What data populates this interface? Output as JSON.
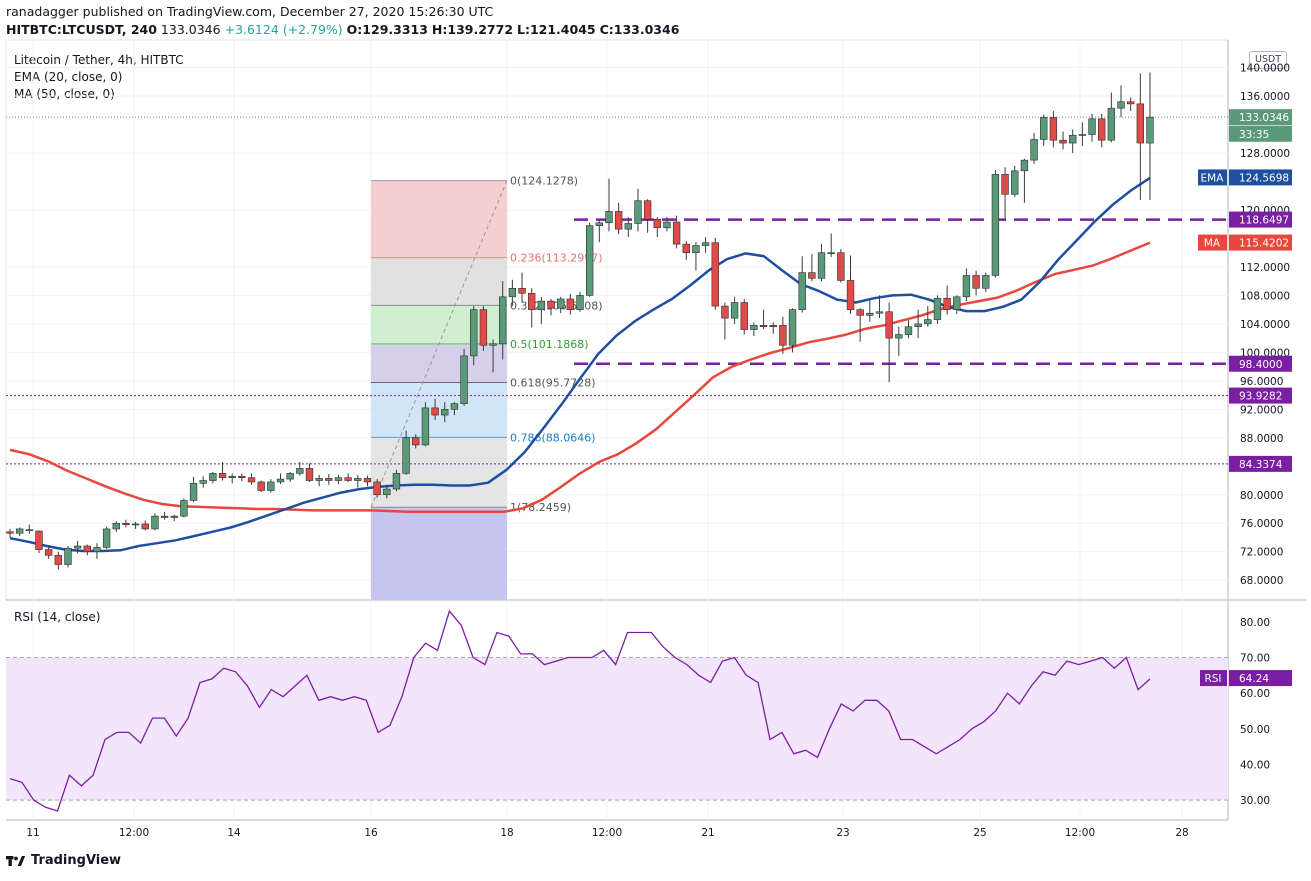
{
  "header": {
    "line1": "ranadagger published on TradingView.com, December 27, 2020 15:26:30 UTC",
    "symbol": "HITBTC:LTCUSDT, 240",
    "price": "133.0346",
    "change": "+3.6124 (+2.79%)",
    "ohlc_o": "O:129.3313",
    "ohlc_h": "H:139.2772",
    "ohlc_l": "L:121.4045",
    "ohlc_c": "C:133.0346"
  },
  "legend": {
    "title": "Litecoin / Tether, 4h, HITBTC",
    "ema": "EMA (20, close, 0)",
    "ma": "MA (50, close, 0)",
    "rsi": "RSI (14, close)"
  },
  "currency_button": "USDT",
  "branding": "TradingView",
  "colors": {
    "up": "#5b9a78",
    "down": "#e04b4a",
    "ema": "#1e4fa0",
    "ma": "#e8473d",
    "fib_line_dashed": "#7b1fa2",
    "rsi": "#7b1fa2"
  },
  "chart_data": {
    "type": "candlestick",
    "price_axis": {
      "ticks": [
        "140.0000",
        "136.0000",
        "128.0000",
        "120.0000",
        "112.0000",
        "108.0000",
        "104.0000",
        "100.0000",
        "96.0000",
        "92.0000",
        "88.0000",
        "80.0000",
        "76.0000",
        "72.0000",
        "68.0000"
      ]
    },
    "time_axis": {
      "ticks": [
        "11",
        "12:00",
        "14",
        "16",
        "18",
        "12:00",
        "21",
        "23",
        "25",
        "12:00",
        "28"
      ]
    },
    "price_labels": [
      {
        "text": "133.0346",
        "kind": "last",
        "color": "#5b9a78"
      },
      {
        "text": "33:35",
        "kind": "countdown",
        "color": "#5b9a78"
      },
      {
        "text": "124.5698",
        "kind": "ema",
        "color": "#1e4fa0"
      },
      {
        "text": "118.6497",
        "kind": "level",
        "color": "#7b1fa2"
      },
      {
        "text": "115.4202",
        "kind": "ma",
        "color": "#e8473d"
      },
      {
        "text": "98.4000",
        "kind": "level",
        "color": "#7b1fa2"
      },
      {
        "text": "93.9282",
        "kind": "level",
        "color": "#7b1fa2"
      },
      {
        "text": "84.3374",
        "kind": "level",
        "color": "#7b1fa2"
      }
    ],
    "tick_labels_on_chart": [
      "EMA",
      "MA"
    ],
    "horizontal_levels": [
      {
        "value": 118.6497,
        "style": "dashed-thick"
      },
      {
        "value": 98.4,
        "style": "dashed-thick"
      },
      {
        "value": 93.9282,
        "style": "dotted"
      },
      {
        "value": 84.3374,
        "style": "dotted"
      }
    ],
    "fibonacci": [
      {
        "label": "0(124.1278)",
        "value": 124.1278
      },
      {
        "label": "0.236(113.2997)",
        "value": 113.2997
      },
      {
        "label": "0.382(106.6008)",
        "value": 106.6008
      },
      {
        "label": "0.5(101.1868)",
        "value": 101.1868
      },
      {
        "label": "0.618(95.7728)",
        "value": 95.7728
      },
      {
        "label": "0.786(88.0646)",
        "value": 88.0646
      },
      {
        "label": "1(78.2459)",
        "value": 78.2459
      }
    ],
    "candles": [
      [
        74.8,
        75.2,
        74.0,
        74.6
      ],
      [
        74.6,
        75.4,
        74.2,
        75.2
      ],
      [
        75.0,
        75.8,
        74.5,
        75.1
      ],
      [
        74.9,
        75.0,
        71.8,
        72.3
      ],
      [
        72.3,
        72.8,
        71.0,
        71.5
      ],
      [
        71.5,
        72.0,
        69.5,
        70.2
      ],
      [
        70.2,
        72.8,
        69.8,
        72.5
      ],
      [
        72.5,
        73.5,
        71.8,
        72.8
      ],
      [
        72.8,
        73.0,
        71.5,
        72.0
      ],
      [
        72.0,
        73.2,
        71.0,
        72.6
      ],
      [
        72.6,
        75.5,
        72.4,
        75.2
      ],
      [
        75.2,
        76.3,
        74.8,
        76.0
      ],
      [
        76.0,
        76.5,
        75.4,
        75.8
      ],
      [
        75.8,
        76.2,
        75.2,
        75.9
      ],
      [
        75.9,
        76.4,
        75.0,
        75.2
      ],
      [
        75.2,
        77.4,
        75.0,
        77.0
      ],
      [
        77.0,
        77.6,
        76.5,
        76.8
      ],
      [
        76.8,
        77.2,
        76.3,
        77.0
      ],
      [
        77.0,
        79.5,
        76.8,
        79.2
      ],
      [
        79.2,
        82.5,
        79.0,
        81.6
      ],
      [
        81.6,
        82.6,
        81.0,
        82.0
      ],
      [
        82.0,
        83.2,
        81.6,
        83.0
      ],
      [
        83.0,
        84.6,
        82.0,
        82.4
      ],
      [
        82.4,
        83.0,
        81.6,
        82.6
      ],
      [
        82.6,
        83.0,
        81.9,
        82.4
      ],
      [
        82.4,
        83.0,
        81.4,
        81.8
      ],
      [
        81.8,
        82.0,
        80.4,
        80.6
      ],
      [
        80.6,
        82.2,
        80.3,
        81.8
      ],
      [
        81.8,
        83.0,
        81.5,
        82.2
      ],
      [
        82.2,
        83.2,
        81.8,
        83.0
      ],
      [
        83.0,
        84.6,
        82.7,
        83.7
      ],
      [
        83.7,
        84.4,
        81.8,
        82.0
      ],
      [
        82.0,
        82.8,
        81.2,
        82.3
      ],
      [
        82.3,
        82.9,
        81.4,
        82.0
      ],
      [
        82.0,
        82.8,
        81.5,
        82.4
      ],
      [
        82.4,
        83.0,
        81.8,
        82.0
      ],
      [
        82.0,
        82.8,
        81.0,
        82.3
      ],
      [
        82.3,
        82.7,
        81.2,
        81.8
      ],
      [
        81.8,
        82.2,
        79.6,
        80.0
      ],
      [
        80.0,
        81.4,
        79.5,
        80.8
      ],
      [
        80.8,
        83.5,
        80.5,
        83.0
      ],
      [
        83.0,
        89.0,
        82.8,
        88.0
      ],
      [
        88.0,
        88.5,
        86.5,
        87.0
      ],
      [
        87.0,
        93.0,
        86.8,
        92.2
      ],
      [
        92.2,
        93.5,
        90.5,
        91.2
      ],
      [
        91.2,
        93.0,
        90.2,
        92.0
      ],
      [
        92.0,
        93.0,
        91.2,
        92.8
      ],
      [
        92.8,
        100.5,
        92.5,
        99.5
      ],
      [
        99.5,
        106.5,
        98.2,
        106.0
      ],
      [
        106.0,
        106.5,
        100.2,
        101.0
      ],
      [
        101.0,
        101.8,
        97.2,
        101.2
      ],
      [
        101.2,
        110.0,
        99.0,
        107.8
      ],
      [
        107.8,
        110.2,
        106.5,
        109.0
      ],
      [
        109.0,
        111.2,
        107.0,
        108.3
      ],
      [
        108.3,
        109.0,
        103.5,
        106.0
      ],
      [
        106.0,
        107.8,
        104.0,
        107.2
      ],
      [
        107.2,
        107.5,
        105.2,
        106.2
      ],
      [
        106.2,
        107.8,
        105.5,
        107.5
      ],
      [
        107.5,
        108.2,
        105.3,
        106.0
      ],
      [
        106.0,
        108.5,
        105.7,
        108.0
      ],
      [
        108.0,
        118.2,
        107.8,
        117.8
      ],
      [
        117.8,
        118.5,
        115.5,
        118.2
      ],
      [
        118.2,
        124.4,
        117.0,
        119.8
      ],
      [
        119.8,
        121.0,
        116.6,
        117.3
      ],
      [
        117.3,
        119.0,
        116.2,
        118.1
      ],
      [
        118.1,
        123.0,
        117.0,
        121.3
      ],
      [
        121.3,
        121.5,
        116.8,
        118.7
      ],
      [
        118.7,
        119.0,
        116.2,
        117.5
      ],
      [
        117.5,
        119.0,
        117.0,
        118.3
      ],
      [
        118.3,
        119.2,
        114.6,
        115.2
      ],
      [
        115.2,
        115.6,
        113.0,
        114.0
      ],
      [
        114.0,
        115.5,
        111.5,
        115.0
      ],
      [
        115.0,
        116.2,
        114.0,
        115.4
      ],
      [
        115.4,
        116.1,
        106.0,
        106.5
      ],
      [
        106.5,
        107.0,
        101.8,
        104.8
      ],
      [
        104.8,
        107.8,
        104.0,
        107.0
      ],
      [
        107.0,
        107.5,
        102.5,
        103.2
      ],
      [
        103.2,
        104.2,
        102.3,
        103.8
      ],
      [
        103.8,
        106.0,
        103.3,
        103.6
      ],
      [
        103.6,
        104.2,
        102.6,
        103.8
      ],
      [
        103.8,
        105.0,
        99.8,
        101.0
      ],
      [
        101.0,
        106.2,
        100.0,
        106.0
      ],
      [
        106.0,
        113.5,
        105.6,
        111.2
      ],
      [
        111.2,
        113.8,
        110.0,
        110.4
      ],
      [
        110.4,
        115.2,
        110.0,
        114.0
      ],
      [
        114.0,
        116.7,
        113.4,
        114.0
      ],
      [
        114.0,
        114.5,
        109.8,
        110.1
      ],
      [
        110.1,
        113.6,
        105.4,
        106.0
      ],
      [
        106.0,
        106.2,
        101.5,
        105.2
      ],
      [
        105.2,
        107.3,
        104.3,
        105.5
      ],
      [
        105.5,
        108.0,
        104.8,
        105.7
      ],
      [
        105.7,
        107.0,
        95.8,
        102.0
      ],
      [
        102.0,
        103.6,
        99.5,
        102.5
      ],
      [
        102.5,
        104.5,
        102.0,
        103.6
      ],
      [
        103.6,
        106.0,
        102.0,
        104.0
      ],
      [
        104.0,
        106.5,
        103.6,
        104.6
      ],
      [
        104.6,
        108.0,
        104.0,
        107.6
      ],
      [
        107.6,
        109.4,
        105.3,
        106.0
      ],
      [
        106.0,
        108.0,
        105.4,
        107.8
      ],
      [
        107.8,
        111.8,
        107.2,
        110.8
      ],
      [
        110.8,
        111.5,
        108.0,
        109.0
      ],
      [
        109.0,
        111.2,
        108.5,
        110.8
      ],
      [
        110.8,
        125.6,
        110.5,
        125.0
      ],
      [
        125.0,
        126.0,
        118.5,
        122.2
      ],
      [
        122.2,
        126.2,
        121.8,
        125.5
      ],
      [
        125.5,
        127.2,
        121.0,
        127.0
      ],
      [
        127.0,
        130.8,
        126.5,
        129.9
      ],
      [
        129.9,
        133.4,
        129.0,
        133.0
      ],
      [
        133.0,
        133.9,
        128.8,
        129.8
      ],
      [
        129.8,
        131.0,
        128.5,
        129.4
      ],
      [
        129.4,
        131.3,
        128.0,
        130.5
      ],
      [
        130.5,
        132.3,
        129.0,
        130.6
      ],
      [
        130.6,
        133.5,
        129.6,
        132.8
      ],
      [
        132.8,
        133.5,
        128.8,
        129.8
      ],
      [
        129.8,
        136.5,
        129.5,
        134.3
      ],
      [
        134.3,
        137.5,
        133.0,
        135.2
      ],
      [
        135.2,
        135.8,
        133.9,
        134.9
      ],
      [
        134.9,
        139.2,
        121.4,
        129.4
      ],
      [
        129.4,
        139.3,
        121.4,
        133.0346
      ]
    ],
    "ema20": [
      73.9,
      73.4,
      72.8,
      72.3,
      72.1,
      72.1,
      72.2,
      72.8,
      73.2,
      73.6,
      74.2,
      74.8,
      75.4,
      76.2,
      77.1,
      78.0,
      78.9,
      79.6,
      80.3,
      80.8,
      81.1,
      81.3,
      81.4,
      81.4,
      81.3,
      81.3,
      81.7,
      83.5,
      86.0,
      89.3,
      92.7,
      96.3,
      99.8,
      102.4,
      104.4,
      106.0,
      107.5,
      109.4,
      111.5,
      113.1,
      113.9,
      113.5,
      111.5,
      109.6,
      108.6,
      107.4,
      107.0,
      107.6,
      108.0,
      108.1,
      107.4,
      106.4,
      105.8,
      105.8,
      106.4,
      107.4,
      109.9,
      113.0,
      115.7,
      118.4,
      120.8,
      122.8,
      124.5
    ],
    "ma50": [
      86.3,
      85.7,
      84.7,
      83.4,
      82.3,
      81.2,
      80.2,
      79.3,
      78.7,
      78.4,
      78.3,
      78.2,
      78.1,
      78.0,
      78.0,
      77.9,
      77.8,
      77.8,
      77.8,
      77.8,
      77.7,
      77.6,
      77.6,
      77.6,
      77.6,
      77.6,
      77.6,
      78.1,
      79.3,
      81.1,
      83.0,
      84.6,
      85.7,
      87.3,
      89.2,
      91.6,
      94.0,
      96.5,
      98.0,
      99.0,
      99.9,
      100.6,
      101.4,
      101.9,
      102.5,
      103.3,
      103.8,
      104.5,
      105.2,
      106.1,
      106.7,
      107.2,
      107.7,
      108.7,
      109.9,
      111.0,
      111.6,
      112.2,
      113.2,
      114.3,
      115.4
    ],
    "rsi": {
      "ylim": [
        25,
        85
      ],
      "ticks": [
        "80.00",
        "70.00",
        "60.00",
        "50.00",
        "40.00",
        "30.00"
      ],
      "band": [
        30,
        70
      ],
      "last_label": "64.24",
      "values": [
        36,
        35,
        30,
        28,
        27,
        37,
        34,
        37,
        47,
        49,
        49,
        46,
        53,
        53,
        48,
        53,
        63,
        64,
        67,
        66,
        62,
        56,
        61,
        59,
        62,
        65,
        58,
        59,
        58,
        59,
        58,
        49,
        51,
        59,
        70,
        74,
        72,
        83,
        79,
        70,
        68,
        77,
        76,
        71,
        71,
        68,
        69,
        70,
        70,
        70,
        72,
        68,
        77,
        77,
        77,
        73,
        70,
        68,
        65,
        63,
        69,
        70,
        65,
        63,
        47,
        49,
        43,
        44,
        42,
        50,
        57,
        55,
        58,
        58,
        55,
        47,
        47,
        45,
        43,
        45,
        47,
        50,
        52,
        55,
        60,
        57,
        62,
        66,
        65,
        69,
        68,
        69,
        70,
        67,
        70,
        61,
        64
      ]
    }
  }
}
